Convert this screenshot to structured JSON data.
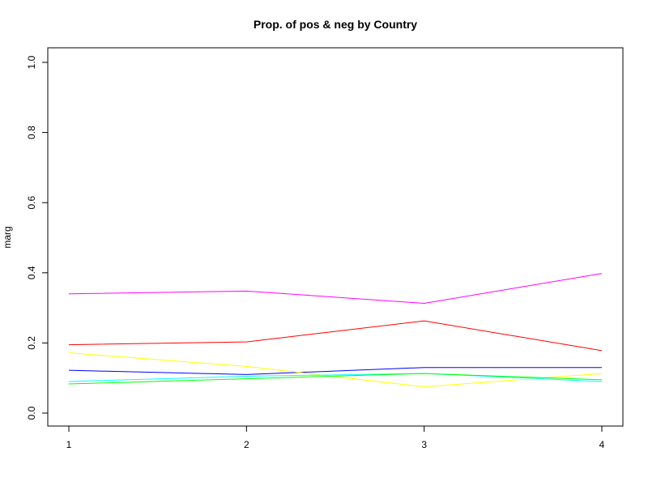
{
  "chart_data": {
    "type": "line",
    "title": "Prop. of pos & neg by Country",
    "xlabel": "",
    "ylabel": "marg",
    "x": [
      1,
      2,
      3,
      4
    ],
    "x_tick_labels": [
      "1",
      "2",
      "3",
      "4"
    ],
    "ylim": [
      0,
      1
    ],
    "y_ticks": [
      0.0,
      0.2,
      0.4,
      0.6,
      0.8,
      1.0
    ],
    "y_tick_labels": [
      "0.0",
      "0.2",
      "0.4",
      "0.6",
      "0.8",
      "1.0"
    ],
    "grid": false,
    "legend": "none",
    "series": [
      {
        "color": "#ff00ff",
        "values": [
          0.34,
          0.348,
          0.313,
          0.398
        ]
      },
      {
        "color": "#ff0000",
        "values": [
          0.195,
          0.203,
          0.263,
          0.178
        ]
      },
      {
        "color": "#0000ff",
        "values": [
          0.122,
          0.11,
          0.13,
          0.13
        ]
      },
      {
        "color": "#ffff00",
        "values": [
          0.172,
          0.133,
          0.075,
          0.113
        ]
      },
      {
        "color": "#00ffff",
        "values": [
          0.09,
          0.105,
          0.113,
          0.09
        ]
      },
      {
        "color": "#00ff00",
        "values": [
          0.083,
          0.098,
          0.113,
          0.095
        ]
      }
    ]
  }
}
